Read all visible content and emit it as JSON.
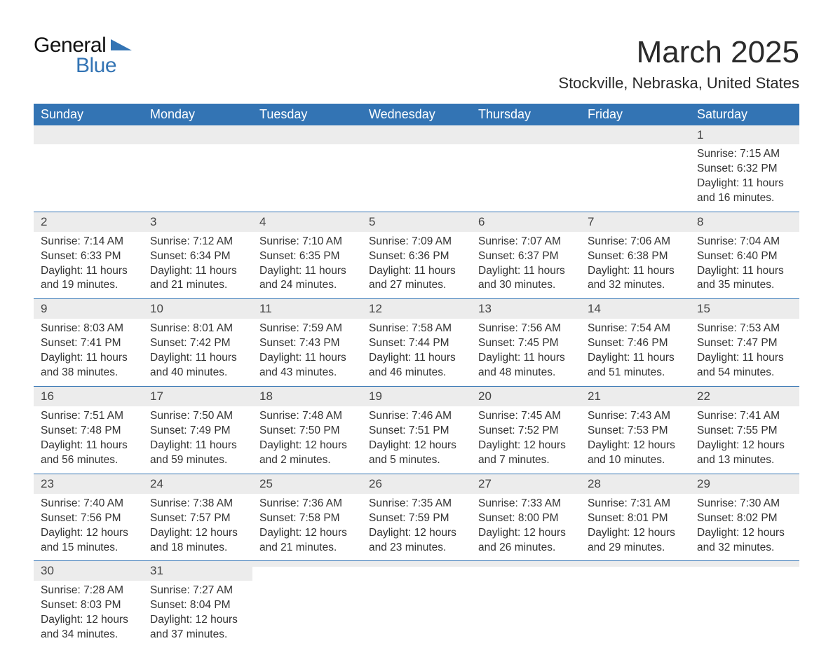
{
  "logo": {
    "text_top": "General",
    "text_bottom": "Blue",
    "shape_color": "#3374b4"
  },
  "header": {
    "month_title": "March 2025",
    "location": "Stockville, Nebraska, United States"
  },
  "styles": {
    "header_bg": "#3374b4",
    "header_text": "#ffffff",
    "daynum_bg": "#ececec",
    "daynum_border": "#3374b4",
    "body_text": "#333333",
    "title_fontsize_pt": 33,
    "location_fontsize_pt": 17,
    "dayheader_fontsize_pt": 14,
    "daybody_fontsize_pt": 12
  },
  "day_headers": [
    "Sunday",
    "Monday",
    "Tuesday",
    "Wednesday",
    "Thursday",
    "Friday",
    "Saturday"
  ],
  "weeks": [
    [
      {
        "num": "",
        "sunrise": "",
        "sunset": "",
        "daylight": ""
      },
      {
        "num": "",
        "sunrise": "",
        "sunset": "",
        "daylight": ""
      },
      {
        "num": "",
        "sunrise": "",
        "sunset": "",
        "daylight": ""
      },
      {
        "num": "",
        "sunrise": "",
        "sunset": "",
        "daylight": ""
      },
      {
        "num": "",
        "sunrise": "",
        "sunset": "",
        "daylight": ""
      },
      {
        "num": "",
        "sunrise": "",
        "sunset": "",
        "daylight": ""
      },
      {
        "num": "1",
        "sunrise": "Sunrise: 7:15 AM",
        "sunset": "Sunset: 6:32 PM",
        "daylight": "Daylight: 11 hours and 16 minutes."
      }
    ],
    [
      {
        "num": "2",
        "sunrise": "Sunrise: 7:14 AM",
        "sunset": "Sunset: 6:33 PM",
        "daylight": "Daylight: 11 hours and 19 minutes."
      },
      {
        "num": "3",
        "sunrise": "Sunrise: 7:12 AM",
        "sunset": "Sunset: 6:34 PM",
        "daylight": "Daylight: 11 hours and 21 minutes."
      },
      {
        "num": "4",
        "sunrise": "Sunrise: 7:10 AM",
        "sunset": "Sunset: 6:35 PM",
        "daylight": "Daylight: 11 hours and 24 minutes."
      },
      {
        "num": "5",
        "sunrise": "Sunrise: 7:09 AM",
        "sunset": "Sunset: 6:36 PM",
        "daylight": "Daylight: 11 hours and 27 minutes."
      },
      {
        "num": "6",
        "sunrise": "Sunrise: 7:07 AM",
        "sunset": "Sunset: 6:37 PM",
        "daylight": "Daylight: 11 hours and 30 minutes."
      },
      {
        "num": "7",
        "sunrise": "Sunrise: 7:06 AM",
        "sunset": "Sunset: 6:38 PM",
        "daylight": "Daylight: 11 hours and 32 minutes."
      },
      {
        "num": "8",
        "sunrise": "Sunrise: 7:04 AM",
        "sunset": "Sunset: 6:40 PM",
        "daylight": "Daylight: 11 hours and 35 minutes."
      }
    ],
    [
      {
        "num": "9",
        "sunrise": "Sunrise: 8:03 AM",
        "sunset": "Sunset: 7:41 PM",
        "daylight": "Daylight: 11 hours and 38 minutes."
      },
      {
        "num": "10",
        "sunrise": "Sunrise: 8:01 AM",
        "sunset": "Sunset: 7:42 PM",
        "daylight": "Daylight: 11 hours and 40 minutes."
      },
      {
        "num": "11",
        "sunrise": "Sunrise: 7:59 AM",
        "sunset": "Sunset: 7:43 PM",
        "daylight": "Daylight: 11 hours and 43 minutes."
      },
      {
        "num": "12",
        "sunrise": "Sunrise: 7:58 AM",
        "sunset": "Sunset: 7:44 PM",
        "daylight": "Daylight: 11 hours and 46 minutes."
      },
      {
        "num": "13",
        "sunrise": "Sunrise: 7:56 AM",
        "sunset": "Sunset: 7:45 PM",
        "daylight": "Daylight: 11 hours and 48 minutes."
      },
      {
        "num": "14",
        "sunrise": "Sunrise: 7:54 AM",
        "sunset": "Sunset: 7:46 PM",
        "daylight": "Daylight: 11 hours and 51 minutes."
      },
      {
        "num": "15",
        "sunrise": "Sunrise: 7:53 AM",
        "sunset": "Sunset: 7:47 PM",
        "daylight": "Daylight: 11 hours and 54 minutes."
      }
    ],
    [
      {
        "num": "16",
        "sunrise": "Sunrise: 7:51 AM",
        "sunset": "Sunset: 7:48 PM",
        "daylight": "Daylight: 11 hours and 56 minutes."
      },
      {
        "num": "17",
        "sunrise": "Sunrise: 7:50 AM",
        "sunset": "Sunset: 7:49 PM",
        "daylight": "Daylight: 11 hours and 59 minutes."
      },
      {
        "num": "18",
        "sunrise": "Sunrise: 7:48 AM",
        "sunset": "Sunset: 7:50 PM",
        "daylight": "Daylight: 12 hours and 2 minutes."
      },
      {
        "num": "19",
        "sunrise": "Sunrise: 7:46 AM",
        "sunset": "Sunset: 7:51 PM",
        "daylight": "Daylight: 12 hours and 5 minutes."
      },
      {
        "num": "20",
        "sunrise": "Sunrise: 7:45 AM",
        "sunset": "Sunset: 7:52 PM",
        "daylight": "Daylight: 12 hours and 7 minutes."
      },
      {
        "num": "21",
        "sunrise": "Sunrise: 7:43 AM",
        "sunset": "Sunset: 7:53 PM",
        "daylight": "Daylight: 12 hours and 10 minutes."
      },
      {
        "num": "22",
        "sunrise": "Sunrise: 7:41 AM",
        "sunset": "Sunset: 7:55 PM",
        "daylight": "Daylight: 12 hours and 13 minutes."
      }
    ],
    [
      {
        "num": "23",
        "sunrise": "Sunrise: 7:40 AM",
        "sunset": "Sunset: 7:56 PM",
        "daylight": "Daylight: 12 hours and 15 minutes."
      },
      {
        "num": "24",
        "sunrise": "Sunrise: 7:38 AM",
        "sunset": "Sunset: 7:57 PM",
        "daylight": "Daylight: 12 hours and 18 minutes."
      },
      {
        "num": "25",
        "sunrise": "Sunrise: 7:36 AM",
        "sunset": "Sunset: 7:58 PM",
        "daylight": "Daylight: 12 hours and 21 minutes."
      },
      {
        "num": "26",
        "sunrise": "Sunrise: 7:35 AM",
        "sunset": "Sunset: 7:59 PM",
        "daylight": "Daylight: 12 hours and 23 minutes."
      },
      {
        "num": "27",
        "sunrise": "Sunrise: 7:33 AM",
        "sunset": "Sunset: 8:00 PM",
        "daylight": "Daylight: 12 hours and 26 minutes."
      },
      {
        "num": "28",
        "sunrise": "Sunrise: 7:31 AM",
        "sunset": "Sunset: 8:01 PM",
        "daylight": "Daylight: 12 hours and 29 minutes."
      },
      {
        "num": "29",
        "sunrise": "Sunrise: 7:30 AM",
        "sunset": "Sunset: 8:02 PM",
        "daylight": "Daylight: 12 hours and 32 minutes."
      }
    ],
    [
      {
        "num": "30",
        "sunrise": "Sunrise: 7:28 AM",
        "sunset": "Sunset: 8:03 PM",
        "daylight": "Daylight: 12 hours and 34 minutes."
      },
      {
        "num": "31",
        "sunrise": "Sunrise: 7:27 AM",
        "sunset": "Sunset: 8:04 PM",
        "daylight": "Daylight: 12 hours and 37 minutes."
      },
      {
        "num": "",
        "sunrise": "",
        "sunset": "",
        "daylight": ""
      },
      {
        "num": "",
        "sunrise": "",
        "sunset": "",
        "daylight": ""
      },
      {
        "num": "",
        "sunrise": "",
        "sunset": "",
        "daylight": ""
      },
      {
        "num": "",
        "sunrise": "",
        "sunset": "",
        "daylight": ""
      },
      {
        "num": "",
        "sunrise": "",
        "sunset": "",
        "daylight": ""
      }
    ]
  ]
}
